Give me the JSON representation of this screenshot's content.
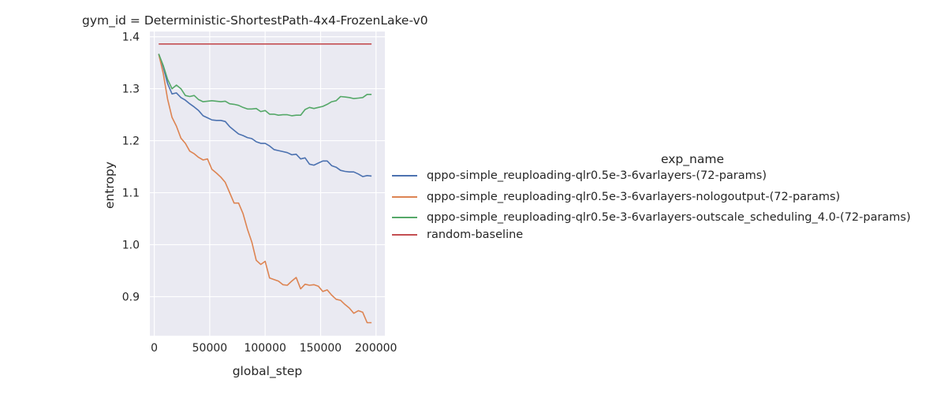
{
  "chart_data": {
    "type": "line",
    "title": "gym_id = Deterministic-ShortestPath-4x4-FrozenLake-v0",
    "xlabel": "global_step",
    "ylabel": "entropy",
    "xlim": [
      -4000,
      208000
    ],
    "ylim": [
      0.825,
      1.41
    ],
    "xticks": [
      0,
      50000,
      100000,
      150000,
      200000
    ],
    "xtick_labels": [
      "0",
      "50000",
      "100000",
      "150000",
      "200000"
    ],
    "yticks": [
      0.9,
      1.0,
      1.1,
      1.2,
      1.3,
      1.4
    ],
    "ytick_labels": [
      "0.9",
      "1.0",
      "1.1",
      "1.2",
      "1.3",
      "1.4"
    ],
    "grid": true,
    "legend_title": "exp_name",
    "legend_position": "right",
    "series": [
      {
        "name": "qppo-simple_reuploading-qlr0.5e-3-6varlayers-(72-params)",
        "color": "#4c72b0",
        "x": [
          4000,
          8000,
          12000,
          16000,
          20000,
          24000,
          28000,
          32000,
          36000,
          40000,
          44000,
          48000,
          52000,
          56000,
          60000,
          64000,
          68000,
          72000,
          76000,
          80000,
          84000,
          88000,
          92000,
          96000,
          100000,
          104000,
          108000,
          112000,
          116000,
          120000,
          124000,
          128000,
          132000,
          136000,
          140000,
          144000,
          148000,
          152000,
          156000,
          160000,
          164000,
          168000,
          172000,
          176000,
          180000,
          184000,
          188000,
          192000,
          196000
        ],
        "y": [
          1.367,
          1.342,
          1.31,
          1.29,
          1.292,
          1.283,
          1.278,
          1.271,
          1.265,
          1.258,
          1.248,
          1.244,
          1.24,
          1.239,
          1.239,
          1.237,
          1.227,
          1.22,
          1.213,
          1.21,
          1.206,
          1.204,
          1.198,
          1.195,
          1.195,
          1.19,
          1.183,
          1.181,
          1.179,
          1.177,
          1.173,
          1.174,
          1.165,
          1.167,
          1.155,
          1.153,
          1.157,
          1.161,
          1.161,
          1.152,
          1.149,
          1.143,
          1.141,
          1.14,
          1.14,
          1.136,
          1.131,
          1.133,
          1.132
        ]
      },
      {
        "name": "qppo-simple_reuploading-qlr0.5e-3-6varlayers-nologoutput-(72-params)",
        "color": "#dd8452",
        "x": [
          4000,
          8000,
          12000,
          16000,
          20000,
          24000,
          28000,
          32000,
          36000,
          40000,
          44000,
          48000,
          52000,
          56000,
          60000,
          64000,
          68000,
          72000,
          76000,
          80000,
          84000,
          88000,
          92000,
          96000,
          100000,
          104000,
          108000,
          112000,
          116000,
          120000,
          124000,
          128000,
          132000,
          136000,
          140000,
          144000,
          148000,
          152000,
          156000,
          160000,
          164000,
          168000,
          172000,
          176000,
          180000,
          184000,
          188000,
          192000,
          196000
        ],
        "y": [
          1.367,
          1.33,
          1.28,
          1.245,
          1.228,
          1.205,
          1.195,
          1.18,
          1.175,
          1.168,
          1.163,
          1.165,
          1.145,
          1.138,
          1.13,
          1.12,
          1.1,
          1.08,
          1.08,
          1.06,
          1.03,
          1.005,
          0.97,
          0.962,
          0.968,
          0.936,
          0.933,
          0.93,
          0.923,
          0.922,
          0.93,
          0.937,
          0.915,
          0.924,
          0.922,
          0.923,
          0.92,
          0.91,
          0.913,
          0.903,
          0.895,
          0.893,
          0.885,
          0.878,
          0.868,
          0.873,
          0.87,
          0.85,
          0.85
        ]
      },
      {
        "name": "qppo-simple_reuploading-qlr0.5e-3-6varlayers-outscale_scheduling_4.0-(72-params)",
        "color": "#55a868",
        "x": [
          4000,
          8000,
          12000,
          16000,
          20000,
          24000,
          28000,
          32000,
          36000,
          40000,
          44000,
          48000,
          52000,
          56000,
          60000,
          64000,
          68000,
          72000,
          76000,
          80000,
          84000,
          88000,
          92000,
          96000,
          100000,
          104000,
          108000,
          112000,
          116000,
          120000,
          124000,
          128000,
          132000,
          136000,
          140000,
          144000,
          148000,
          152000,
          156000,
          160000,
          164000,
          168000,
          172000,
          176000,
          180000,
          184000,
          188000,
          192000,
          196000
        ],
        "y": [
          1.367,
          1.345,
          1.318,
          1.3,
          1.307,
          1.3,
          1.287,
          1.285,
          1.287,
          1.279,
          1.275,
          1.276,
          1.277,
          1.276,
          1.275,
          1.276,
          1.271,
          1.27,
          1.268,
          1.264,
          1.261,
          1.261,
          1.262,
          1.256,
          1.258,
          1.251,
          1.251,
          1.249,
          1.25,
          1.25,
          1.248,
          1.249,
          1.249,
          1.26,
          1.264,
          1.262,
          1.264,
          1.266,
          1.27,
          1.275,
          1.277,
          1.285,
          1.284,
          1.283,
          1.281,
          1.282,
          1.283,
          1.289,
          1.289
        ]
      },
      {
        "name": "random-baseline",
        "color": "#c44e52",
        "x": [
          4000,
          196000
        ],
        "y": [
          1.386,
          1.386
        ]
      }
    ]
  }
}
